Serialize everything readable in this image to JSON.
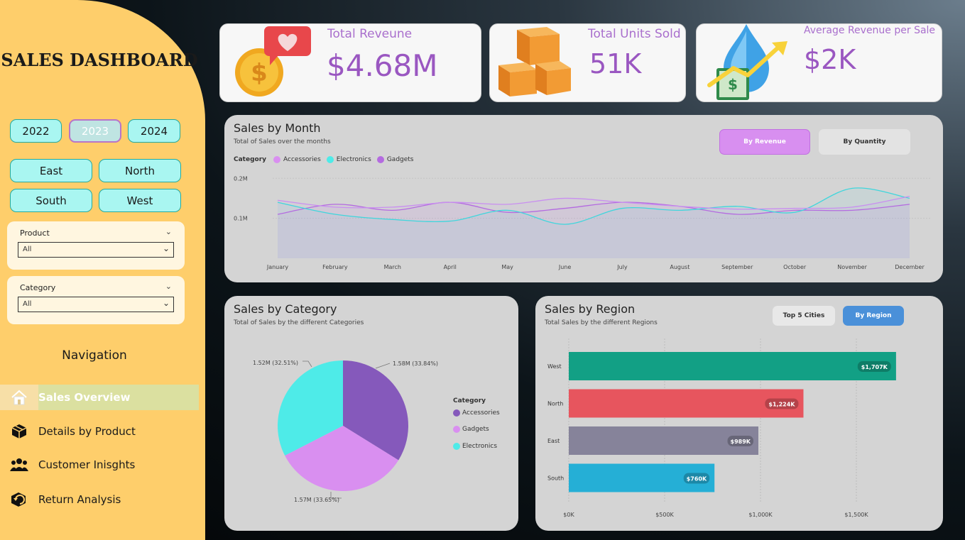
{
  "sidebar": {
    "title": "SALES DASHBOARD",
    "years": [
      "2022",
      "2023",
      "2024"
    ],
    "selected_year": "2023",
    "regions": [
      "East",
      "North",
      "South",
      "West"
    ],
    "product_slicer": {
      "label": "Product",
      "value": "All"
    },
    "category_slicer": {
      "label": "Category",
      "value": "All"
    },
    "nav_title": "Navigation",
    "nav_items": [
      {
        "label": "Sales Overview",
        "icon": "home-icon",
        "active": true
      },
      {
        "label": "Details by Product",
        "icon": "box-icon",
        "active": false
      },
      {
        "label": "Customer Inisghts",
        "icon": "users-icon",
        "active": false
      },
      {
        "label": "Return Analysis",
        "icon": "return-icon",
        "active": false
      }
    ]
  },
  "kpis": [
    {
      "title": "Total Reveune",
      "value": "$4.68M",
      "icon": "coin-heart-icon"
    },
    {
      "title": "Total Units Sold",
      "value": "51K",
      "icon": "boxes-icon"
    },
    {
      "title": "Average Revenue per Sale",
      "value": "$2K",
      "icon": "money-growth-icon"
    }
  ],
  "month_panel": {
    "title": "Sales by Month",
    "subtitle": "Total of Sales over the months",
    "btn_revenue": "By Revenue",
    "btn_quantity": "By Quantity",
    "legend_label": "Category"
  },
  "category_panel": {
    "title": "Sales by Category",
    "subtitle": "Total of Sales by the different Categories",
    "legend_title": "Category"
  },
  "region_panel": {
    "title": "Sales by Region",
    "subtitle": "Total Sales by the different Regions",
    "btn_cities": "Top 5 Cities",
    "btn_region": "By Region"
  },
  "colors": {
    "accessories": "#8559bb",
    "gadgets": "#d98ff0",
    "electronics": "#4eebe8",
    "west": "#12a085",
    "north": "#e7555e",
    "east": "#86839a",
    "south": "#25afd6"
  },
  "chart_data": [
    {
      "type": "line",
      "x": [
        "January",
        "February",
        "March",
        "April",
        "May",
        "June",
        "July",
        "August",
        "September",
        "October",
        "November",
        "December"
      ],
      "yticks": [
        "0.1M",
        "0.2M"
      ],
      "yticks_values": [
        0.1,
        0.2
      ],
      "ylim": [
        0.0,
        0.22
      ],
      "series": [
        {
          "name": "Accessories",
          "values": [
            0.11,
            0.135,
            0.12,
            0.14,
            0.115,
            0.125,
            0.14,
            0.13,
            0.11,
            0.12,
            0.12,
            0.135
          ]
        },
        {
          "name": "Electronics",
          "values": [
            0.14,
            0.11,
            0.097,
            0.093,
            0.12,
            0.085,
            0.125,
            0.12,
            0.13,
            0.115,
            0.175,
            0.15
          ]
        },
        {
          "name": "Gadgets",
          "values": [
            0.145,
            0.128,
            0.128,
            0.14,
            0.135,
            0.15,
            0.14,
            0.13,
            0.123,
            0.125,
            0.128,
            0.155
          ]
        }
      ]
    },
    {
      "type": "pie",
      "slices": [
        {
          "name": "Accessories",
          "value": 1.58,
          "label": "1.58M (33.84%)"
        },
        {
          "name": "Gadgets",
          "value": 1.57,
          "label": "1.57M (33.65%)"
        },
        {
          "name": "Electronics",
          "value": 1.52,
          "label": "1.52M (32.51%)"
        }
      ]
    },
    {
      "type": "bar",
      "orientation": "horizontal",
      "categories": [
        "West",
        "North",
        "East",
        "South"
      ],
      "values": [
        1707,
        1224,
        989,
        760
      ],
      "data_labels": [
        "$1,707K",
        "$1,224K",
        "$989K",
        "$760K"
      ],
      "xticks": [
        "$0K",
        "$500K",
        "$1,000K",
        "$1,500K"
      ],
      "xticks_values": [
        0,
        500,
        1000,
        1500
      ],
      "xlim": [
        0,
        1800
      ]
    }
  ]
}
